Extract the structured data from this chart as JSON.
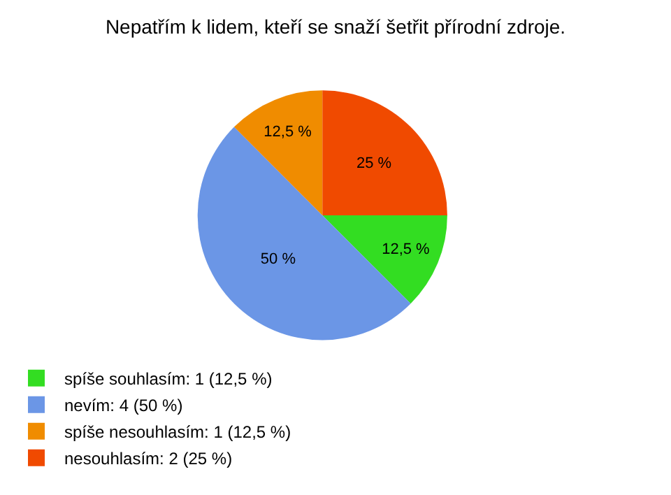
{
  "chart_data": {
    "type": "pie",
    "title": "Nepatřím k lidem, kteří se snaží šetřit přírodní zdroje.",
    "categories": [
      "spíše souhlasím: 1 (12,5 %)",
      "nevím: 4 (50 %)",
      "spíše nesouhlasím: 1 (12,5 %)",
      "nesouhlasím: 2 (25 %)"
    ],
    "values": [
      12.5,
      50,
      12.5,
      25
    ],
    "value_labels": [
      "12,5 %",
      "50 %",
      "12,5 %",
      "25 %"
    ],
    "colors": [
      "#33dd22",
      "#6b96e6",
      "#f08c00",
      "#f04a00"
    ],
    "legend": "bottom left"
  }
}
